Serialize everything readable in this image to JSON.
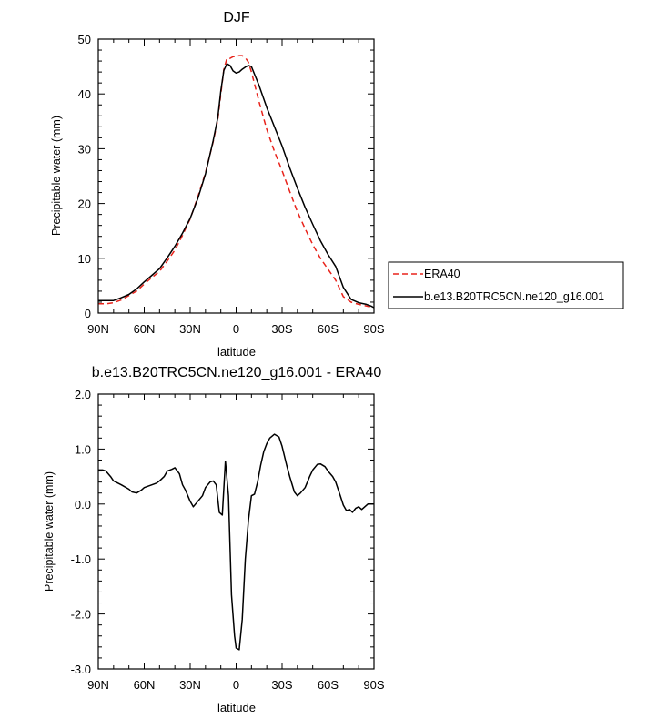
{
  "chart_data": [
    {
      "type": "line",
      "title": "DJF",
      "xlabel": "latitude",
      "ylabel": "Precipitable water (mm)",
      "xlim": [
        90,
        -90
      ],
      "ylim": [
        0,
        50
      ],
      "xticks": [
        90,
        60,
        30,
        0,
        -30,
        -60,
        -90
      ],
      "xtick_labels": [
        "90N",
        "60N",
        "30N",
        "0",
        "30S",
        "60S",
        "90S"
      ],
      "yticks": [
        0,
        10,
        20,
        30,
        40,
        50
      ],
      "ytick_labels": [
        "0",
        "10",
        "20",
        "30",
        "40",
        "50"
      ],
      "legend": {
        "placement": "right"
      },
      "series": [
        {
          "name": "ERA40",
          "color": "#e8231b",
          "dash": "dashed",
          "x": [
            90,
            85,
            80,
            75,
            70,
            65,
            60,
            55,
            50,
            45,
            40,
            35,
            30,
            25,
            20,
            15,
            12,
            10,
            8,
            6,
            4,
            2,
            0,
            -2,
            -4,
            -6,
            -8,
            -10,
            -15,
            -20,
            -25,
            -30,
            -35,
            -40,
            -45,
            -50,
            -55,
            -60,
            -65,
            -70,
            -75,
            -80,
            -85,
            -88,
            -90
          ],
          "values": [
            1.7,
            1.7,
            1.9,
            2.4,
            3.2,
            4.0,
            5.3,
            6.5,
            7.6,
            9.5,
            11.5,
            14.2,
            17.2,
            21.2,
            25.6,
            31.3,
            35.2,
            40.0,
            44.5,
            46.5,
            46.5,
            46.8,
            46.8,
            47.0,
            47.0,
            46.6,
            45.8,
            44.0,
            38.5,
            33.5,
            29.5,
            26.0,
            22.2,
            18.5,
            15.4,
            12.5,
            10.0,
            8.0,
            6.0,
            3.0,
            2.0,
            1.6,
            1.3,
            1.1,
            1.0
          ]
        },
        {
          "name": "b.e13.B20TRC5CN.ne120_g16.001",
          "color": "#000000",
          "dash": "solid",
          "x": [
            90,
            85,
            80,
            75,
            70,
            65,
            60,
            55,
            50,
            45,
            40,
            35,
            30,
            25,
            20,
            15,
            12,
            10,
            8,
            6,
            4,
            2,
            0,
            -2,
            -4,
            -6,
            -8,
            -10,
            -15,
            -20,
            -25,
            -30,
            -35,
            -40,
            -45,
            -50,
            -55,
            -60,
            -65,
            -70,
            -75,
            -80,
            -85,
            -88,
            -90
          ],
          "values": [
            2.3,
            2.3,
            2.3,
            2.8,
            3.4,
            4.4,
            5.7,
            6.9,
            8.1,
            10.1,
            12.2,
            14.6,
            17.3,
            20.9,
            25.4,
            31.5,
            35.6,
            40.6,
            44.3,
            45.5,
            45.2,
            44.2,
            43.8,
            44.0,
            44.5,
            44.9,
            45.2,
            45.0,
            41.5,
            37.5,
            34.0,
            30.5,
            26.5,
            22.8,
            19.3,
            16.2,
            13.2,
            10.7,
            8.5,
            4.7,
            2.5,
            1.9,
            1.6,
            1.3,
            1.0
          ]
        }
      ]
    },
    {
      "type": "line",
      "title": "b.e13.B20TRC5CN.ne120_g16.001 - ERA40",
      "xlabel": "latitude",
      "ylabel": "Precipitable water (mm)",
      "xlim": [
        90,
        -90
      ],
      "ylim": [
        -3.0,
        2.0
      ],
      "xticks": [
        90,
        60,
        30,
        0,
        -30,
        -60,
        -90
      ],
      "xtick_labels": [
        "90N",
        "60N",
        "30N",
        "0",
        "30S",
        "60S",
        "90S"
      ],
      "yticks": [
        -3,
        -2,
        -1,
        0,
        1,
        2
      ],
      "ytick_labels": [
        "-3.0",
        "-2.0",
        "-1.0",
        "0.0",
        "1.0",
        "2.0"
      ],
      "series": [
        {
          "color": "#000000",
          "dash": "solid",
          "x": [
            90,
            87,
            85,
            82,
            80,
            75,
            70,
            68,
            65,
            62,
            60,
            55,
            52,
            50,
            47,
            45,
            42,
            40,
            37,
            35,
            33,
            30,
            28,
            25,
            22,
            20,
            17,
            15,
            13,
            11,
            9,
            7,
            5,
            3,
            1,
            0,
            -2,
            -4,
            -6,
            -8,
            -10,
            -12,
            -14,
            -16,
            -18,
            -20,
            -22,
            -25,
            -28,
            -30,
            -33,
            -35,
            -38,
            -40,
            -42,
            -45,
            -48,
            -50,
            -53,
            -55,
            -58,
            -60,
            -63,
            -65,
            -68,
            -70,
            -72,
            -74,
            -76,
            -78,
            -80,
            -82,
            -84,
            -86,
            -88,
            -90
          ],
          "values": [
            0.62,
            0.62,
            0.6,
            0.5,
            0.42,
            0.35,
            0.27,
            0.22,
            0.2,
            0.25,
            0.3,
            0.35,
            0.38,
            0.42,
            0.5,
            0.6,
            0.63,
            0.66,
            0.55,
            0.35,
            0.25,
            0.05,
            -0.05,
            0.05,
            0.15,
            0.3,
            0.4,
            0.42,
            0.35,
            -0.15,
            -0.2,
            0.78,
            0.15,
            -1.65,
            -2.4,
            -2.62,
            -2.65,
            -2.1,
            -1.0,
            -0.3,
            0.15,
            0.18,
            0.4,
            0.7,
            0.95,
            1.1,
            1.2,
            1.27,
            1.22,
            1.05,
            0.7,
            0.5,
            0.22,
            0.15,
            0.2,
            0.3,
            0.5,
            0.62,
            0.72,
            0.73,
            0.68,
            0.6,
            0.5,
            0.4,
            0.15,
            -0.02,
            -0.12,
            -0.1,
            -0.15,
            -0.08,
            -0.05,
            -0.1,
            -0.05,
            0.0,
            0.0,
            0.0
          ]
        }
      ]
    }
  ]
}
